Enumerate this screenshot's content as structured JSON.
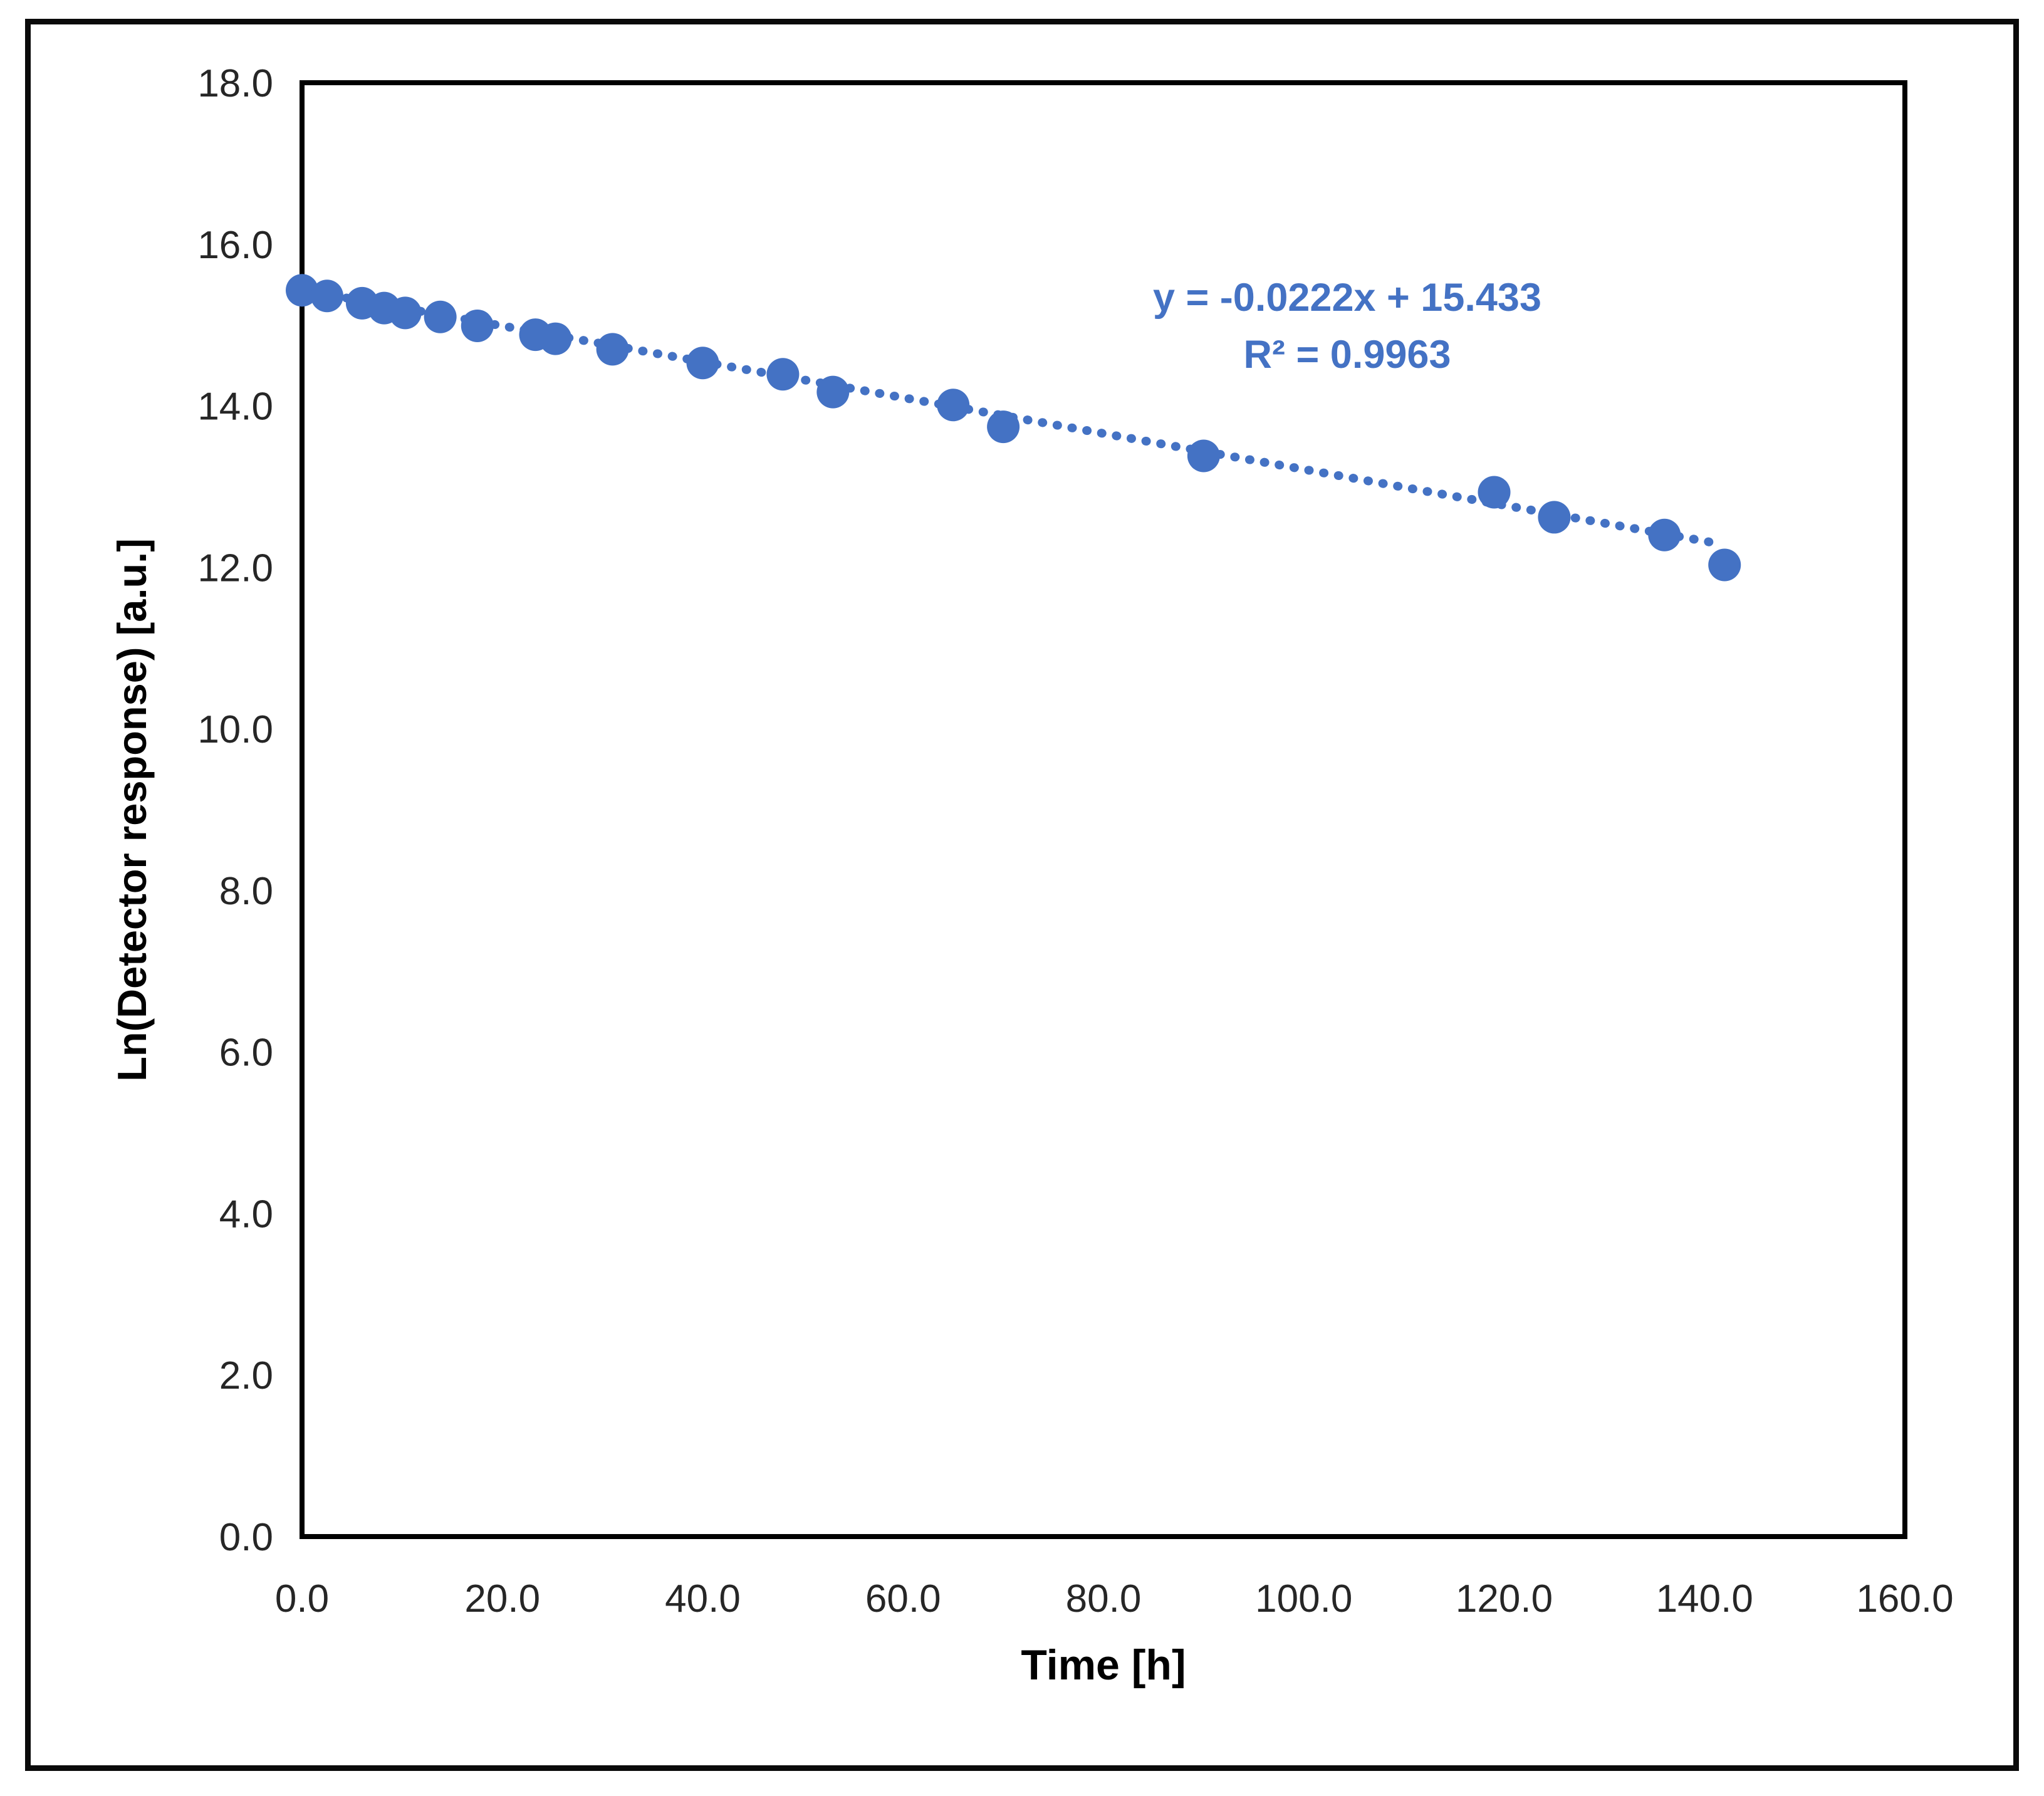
{
  "figure": {
    "background": "#ffffff",
    "frame_color": "#0a0a0a"
  },
  "chart_data": {
    "type": "scatter",
    "title": "",
    "xlabel": "Time [h]",
    "ylabel": "Ln(Detector response) [a.u.]",
    "xlim": [
      0,
      160
    ],
    "xstep": 20,
    "ylim": [
      0,
      18
    ],
    "ystep": 2,
    "tick_decimals": 1,
    "grid": false,
    "legend": "none",
    "axis_color": "#000000",
    "tick_label_color": "#262626",
    "plot_border": "full-rectangle",
    "series": [
      {
        "name": "ln-detector-response",
        "marker": "circle",
        "marker_color": "#4472C4",
        "points": [
          {
            "x": 0.0,
            "y": 15.43
          },
          {
            "x": 2.5,
            "y": 15.36
          },
          {
            "x": 6.0,
            "y": 15.27
          },
          {
            "x": 8.2,
            "y": 15.21
          },
          {
            "x": 10.3,
            "y": 15.15
          },
          {
            "x": 13.8,
            "y": 15.1
          },
          {
            "x": 17.5,
            "y": 14.99
          },
          {
            "x": 23.3,
            "y": 14.88
          },
          {
            "x": 25.3,
            "y": 14.83
          },
          {
            "x": 31.0,
            "y": 14.7
          },
          {
            "x": 40.0,
            "y": 14.53
          },
          {
            "x": 48.0,
            "y": 14.39
          },
          {
            "x": 53.0,
            "y": 14.17
          },
          {
            "x": 65.0,
            "y": 14.01
          },
          {
            "x": 70.0,
            "y": 13.74
          },
          {
            "x": 90.0,
            "y": 13.38
          },
          {
            "x": 119.0,
            "y": 12.93
          },
          {
            "x": 125.0,
            "y": 12.62
          },
          {
            "x": 136.0,
            "y": 12.4
          },
          {
            "x": 142.0,
            "y": 12.03
          }
        ]
      }
    ],
    "trendline": {
      "style": "dotted",
      "color": "#4472C4",
      "slope": -0.0222,
      "intercept": 15.433,
      "r_squared": 0.9963,
      "x_start": 0,
      "x_end": 141.5,
      "equation_line1": "y = -0.0222x + 15.433",
      "equation_line2": "R² = 0.9963"
    }
  }
}
